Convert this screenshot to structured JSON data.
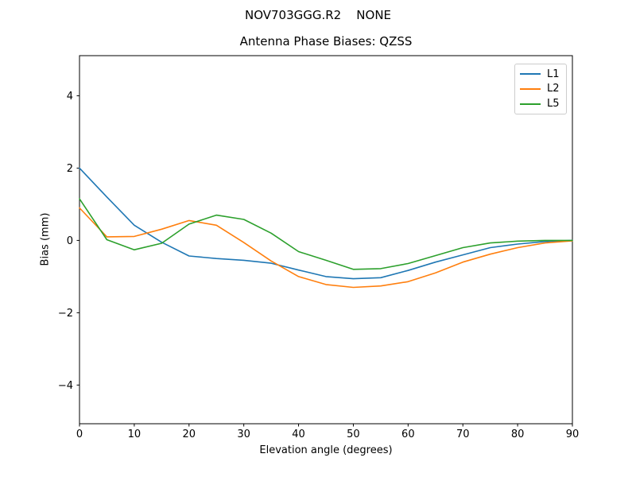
{
  "figure": {
    "suptitle": "NOV703GGG.R2    NONE"
  },
  "chart_data": {
    "type": "line",
    "title": "Antenna Phase Biases: QZSS",
    "suptitle": "NOV703GGG.R2    NONE",
    "xlabel": "Elevation angle (degrees)",
    "ylabel": "Bias (mm)",
    "xlim": [
      0,
      90
    ],
    "ylim": [
      -5.07,
      5.11
    ],
    "xticks": [
      0,
      10,
      20,
      30,
      40,
      50,
      60,
      70,
      80,
      90
    ],
    "xtick_labels": [
      "0",
      "10",
      "20",
      "30",
      "40",
      "50",
      "60",
      "70",
      "80",
      "90"
    ],
    "yticks": [
      -4,
      -2,
      0,
      2,
      4
    ],
    "ytick_labels": [
      "−4",
      "−2",
      "0",
      "2",
      "4"
    ],
    "grid": false,
    "legend_position": "upper right",
    "x": [
      0,
      5,
      10,
      15,
      20,
      25,
      30,
      35,
      40,
      45,
      50,
      55,
      60,
      65,
      70,
      75,
      80,
      85,
      90
    ],
    "series": [
      {
        "name": "L1",
        "color": "#1f77b4",
        "values": [
          2.0,
          1.2,
          0.42,
          -0.05,
          -0.43,
          -0.5,
          -0.55,
          -0.63,
          -0.82,
          -1.0,
          -1.06,
          -1.03,
          -0.83,
          -0.6,
          -0.4,
          -0.2,
          -0.1,
          -0.03,
          0.0
        ]
      },
      {
        "name": "L2",
        "color": "#ff7f0e",
        "values": [
          0.9,
          0.1,
          0.11,
          0.31,
          0.55,
          0.42,
          -0.06,
          -0.57,
          -1.0,
          -1.22,
          -1.3,
          -1.26,
          -1.14,
          -0.9,
          -0.6,
          -0.38,
          -0.2,
          -0.07,
          -0.01
        ]
      },
      {
        "name": "L5",
        "color": "#2ca02c",
        "values": [
          1.15,
          0.02,
          -0.26,
          -0.08,
          0.45,
          0.7,
          0.58,
          0.2,
          -0.31,
          -0.55,
          -0.8,
          -0.78,
          -0.64,
          -0.42,
          -0.2,
          -0.07,
          -0.02,
          0.0,
          0.0
        ]
      }
    ]
  }
}
